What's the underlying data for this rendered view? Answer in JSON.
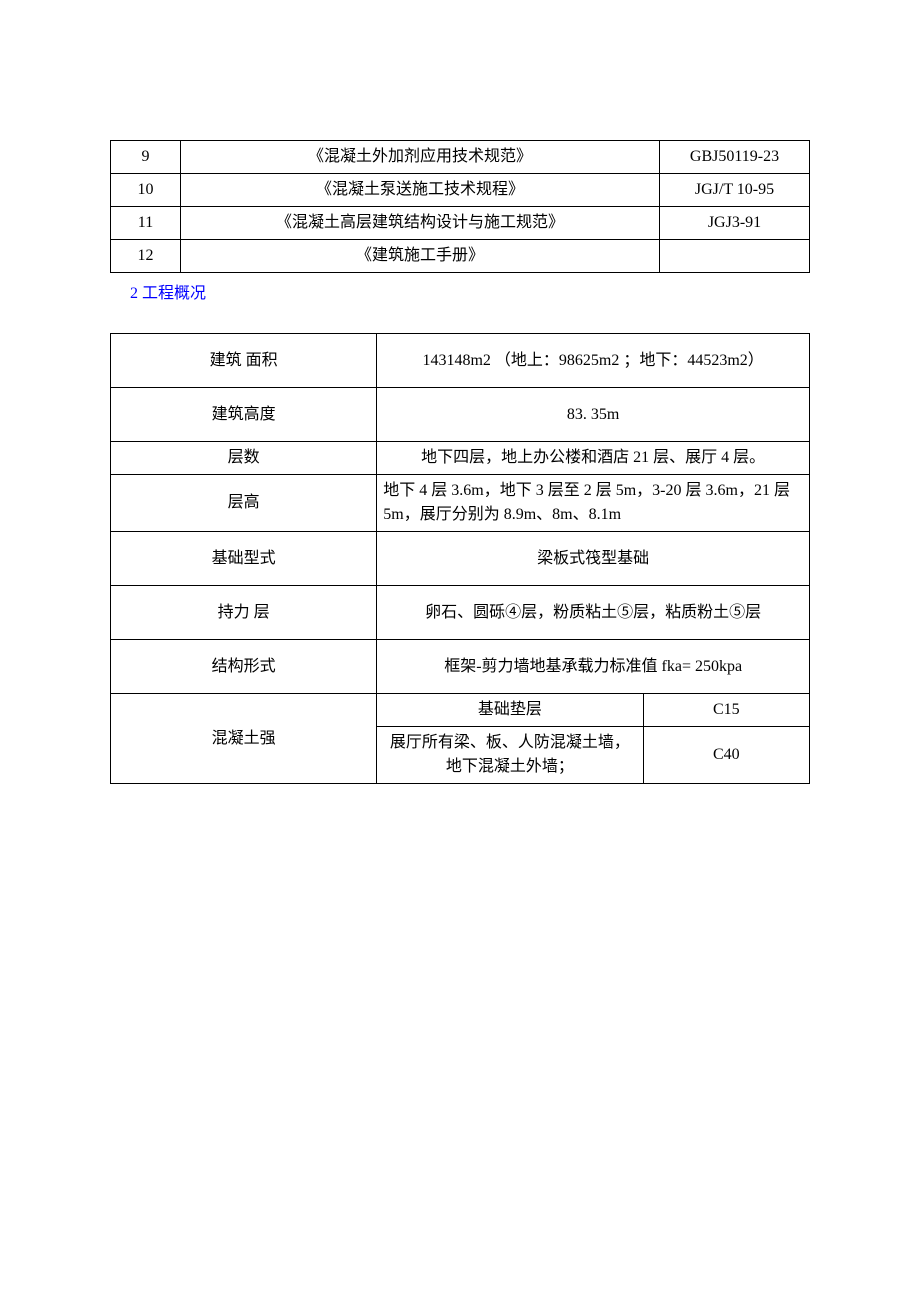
{
  "table1": {
    "rows": [
      {
        "num": "9",
        "title": "《混凝土外加剂应用技术规范》",
        "code": "GBJ50119-23"
      },
      {
        "num": "10",
        "title": "《混凝土泵送施工技术规程》",
        "code": "JGJ/T 10-95"
      },
      {
        "num": "11",
        "title": "《混凝土高层建筑结构设计与施工规范》",
        "code": "JGJ3-91"
      },
      {
        "num": "12",
        "title": "《建筑施工手册》",
        "code": ""
      }
    ]
  },
  "section_title": "2 工程概况",
  "table2": {
    "rows": [
      {
        "label": "建筑 面积",
        "value": "143148m2 （地上：98625m2 ；地下：44523m2）"
      },
      {
        "label": "建筑高度",
        "value": "83. 35m"
      },
      {
        "label": "层数",
        "value": "地下四层，地上办公楼和酒店 21 层、展厅 4 层。"
      },
      {
        "label": "层高",
        "value": "地下 4 层 3.6m，地下 3 层至 2 层 5m，3-20 层 3.6m，21 层 5m，展厅分别为 8.9m、8m、8.1m"
      },
      {
        "label": "基础型式",
        "value": "梁板式筏型基础"
      },
      {
        "label": "持力 层",
        "value": "卵石、圆砾④层，粉质粘土⑤层，粘质粉土⑤层"
      },
      {
        "label": "结构形式",
        "value": "框架-剪力墙地基承载力标准值 fka= 250kpa"
      }
    ],
    "concrete": {
      "label": "混凝土强",
      "items": [
        {
          "desc": "基础垫层",
          "grade": "C15"
        },
        {
          "desc": "展厅所有梁、板、人防混凝土墙，地下混凝土外墙；",
          "grade": "C40"
        }
      ]
    }
  },
  "colors": {
    "link_color": "#0000ff",
    "border_color": "#000000",
    "background": "#ffffff",
    "text_color": "#000000"
  }
}
